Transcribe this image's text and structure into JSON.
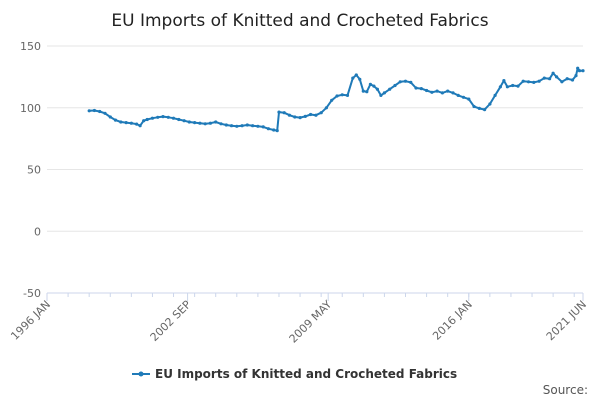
{
  "chart_data": {
    "type": "line",
    "title": "EU Imports of Knitted and Crocheted Fabrics",
    "xlabel": "",
    "ylabel": "",
    "ylim": [
      -50,
      150
    ],
    "yticks": [
      150,
      100,
      50,
      0,
      -50
    ],
    "x_tick_labels": [
      "1996 JAN",
      "2002 SEP",
      "2009 MAY",
      "2016 JAN",
      "2021 JUN"
    ],
    "x_tick_positions": [
      "1996-01",
      "2002-09",
      "2009-05",
      "2016-01",
      "2021-06"
    ],
    "x_range": [
      "1996-01",
      "2021-06"
    ],
    "grid": true,
    "legend_position": "bottom",
    "series": [
      {
        "name": "EU Imports of Knitted and Crocheted Fabrics",
        "color": "#1f7ab8",
        "points": [
          [
            "1998-01",
            97.5
          ],
          [
            "1998-04",
            97.8
          ],
          [
            "1998-07",
            97.0
          ],
          [
            "1998-10",
            95.5
          ],
          [
            "1999-01",
            92.5
          ],
          [
            "1999-04",
            90.0
          ],
          [
            "1999-07",
            88.5
          ],
          [
            "1999-10",
            88.0
          ],
          [
            "2000-01",
            87.5
          ],
          [
            "2000-04",
            86.8
          ],
          [
            "2000-06",
            85.5
          ],
          [
            "2000-08",
            89.5
          ],
          [
            "2000-10",
            90.5
          ],
          [
            "2001-01",
            91.5
          ],
          [
            "2001-04",
            92.3
          ],
          [
            "2001-07",
            92.8
          ],
          [
            "2001-10",
            92.3
          ],
          [
            "2002-01",
            91.5
          ],
          [
            "2002-04",
            90.5
          ],
          [
            "2002-07",
            89.5
          ],
          [
            "2002-10",
            88.5
          ],
          [
            "2003-01",
            88.0
          ],
          [
            "2003-04",
            87.5
          ],
          [
            "2003-07",
            87.0
          ],
          [
            "2003-10",
            87.5
          ],
          [
            "2004-01",
            88.5
          ],
          [
            "2004-04",
            87.0
          ],
          [
            "2004-07",
            86.0
          ],
          [
            "2004-10",
            85.5
          ],
          [
            "2005-01",
            85.0
          ],
          [
            "2005-04",
            85.5
          ],
          [
            "2005-07",
            86.0
          ],
          [
            "2005-10",
            85.5
          ],
          [
            "2006-01",
            85.0
          ],
          [
            "2006-04",
            84.5
          ],
          [
            "2006-07",
            83.0
          ],
          [
            "2006-10",
            82.0
          ],
          [
            "2006-12",
            81.5
          ],
          [
            "2007-01",
            96.5
          ],
          [
            "2007-04",
            96.0
          ],
          [
            "2007-07",
            94.0
          ],
          [
            "2007-10",
            92.5
          ],
          [
            "2008-01",
            92.0
          ],
          [
            "2008-04",
            93.0
          ],
          [
            "2008-07",
            94.5
          ],
          [
            "2008-10",
            94.0
          ],
          [
            "2009-01",
            96.0
          ],
          [
            "2009-04",
            100.0
          ],
          [
            "2009-07",
            106.0
          ],
          [
            "2009-10",
            109.5
          ],
          [
            "2010-01",
            110.5
          ],
          [
            "2010-04",
            110.0
          ],
          [
            "2010-07",
            124.0
          ],
          [
            "2010-09",
            126.5
          ],
          [
            "2010-11",
            123.0
          ],
          [
            "2011-01",
            113.5
          ],
          [
            "2011-03",
            113.0
          ],
          [
            "2011-05",
            119.0
          ],
          [
            "2011-07",
            117.5
          ],
          [
            "2011-09",
            115.0
          ],
          [
            "2011-11",
            110.0
          ],
          [
            "2012-01",
            112.0
          ],
          [
            "2012-04",
            115.0
          ],
          [
            "2012-07",
            118.0
          ],
          [
            "2012-10",
            121.0
          ],
          [
            "2013-01",
            121.5
          ],
          [
            "2013-04",
            120.5
          ],
          [
            "2013-07",
            116.0
          ],
          [
            "2013-10",
            115.5
          ],
          [
            "2014-01",
            114.0
          ],
          [
            "2014-04",
            112.5
          ],
          [
            "2014-07",
            113.5
          ],
          [
            "2014-10",
            112.0
          ],
          [
            "2015-01",
            113.5
          ],
          [
            "2015-04",
            112.0
          ],
          [
            "2015-07",
            110.0
          ],
          [
            "2015-10",
            108.5
          ],
          [
            "2016-01",
            107.0
          ],
          [
            "2016-04",
            101.0
          ],
          [
            "2016-07",
            99.5
          ],
          [
            "2016-10",
            98.5
          ],
          [
            "2017-01",
            103.0
          ],
          [
            "2017-04",
            110.0
          ],
          [
            "2017-07",
            117.0
          ],
          [
            "2017-09",
            122.0
          ],
          [
            "2017-11",
            117.0
          ],
          [
            "2018-02",
            118.0
          ],
          [
            "2018-05",
            117.5
          ],
          [
            "2018-08",
            121.5
          ],
          [
            "2018-11",
            121.0
          ],
          [
            "2019-02",
            120.5
          ],
          [
            "2019-05",
            121.5
          ],
          [
            "2019-08",
            124.0
          ],
          [
            "2019-11",
            123.5
          ],
          [
            "2020-01",
            128.0
          ],
          [
            "2020-03",
            125.0
          ],
          [
            "2020-06",
            121.0
          ],
          [
            "2020-09",
            123.5
          ],
          [
            "2020-12",
            122.5
          ],
          [
            "2021-02",
            126.0
          ],
          [
            "2021-03",
            132.0
          ],
          [
            "2021-04",
            130.0
          ],
          [
            "2021-06",
            130.0
          ]
        ]
      }
    ]
  },
  "source_label": "Source:"
}
